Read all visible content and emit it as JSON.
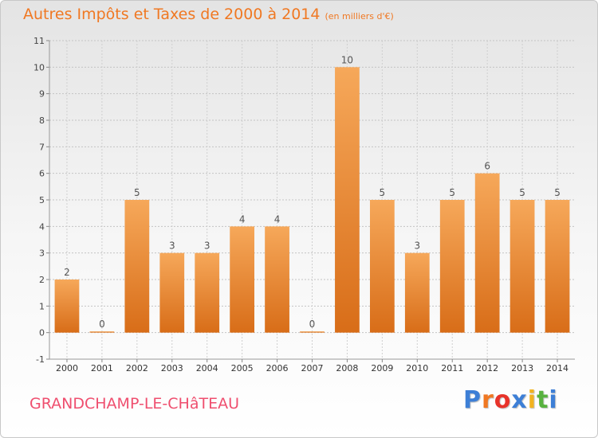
{
  "header": {
    "title": "Autres Impôts et Taxes de 2000 à 2014",
    "unit": "(en milliers d'€)"
  },
  "footer": {
    "commune": "GRANDCHAMP-LE-CHâTEAU",
    "logo_letters": [
      "P",
      "r",
      "o",
      "x",
      "i",
      "t",
      "i"
    ]
  },
  "colors": {
    "title": "#f07822",
    "commune": "#ef4f6f",
    "bar_light": "#f6a85a",
    "bar_dark": "#d86d18"
  },
  "chart_data": {
    "type": "bar",
    "title": "Autres Impôts et Taxes de 2000 à 2014",
    "xlabel": "",
    "ylabel": "",
    "categories": [
      "2000",
      "2001",
      "2002",
      "2003",
      "2004",
      "2005",
      "2006",
      "2007",
      "2008",
      "2009",
      "2010",
      "2011",
      "2012",
      "2013",
      "2014"
    ],
    "values": [
      2,
      0,
      5,
      3,
      3,
      4,
      4,
      0,
      10,
      5,
      3,
      5,
      6,
      5,
      5
    ],
    "ylim": [
      -1,
      11
    ],
    "yticks": [
      -1,
      0,
      1,
      2,
      3,
      4,
      5,
      6,
      7,
      8,
      9,
      10,
      11
    ],
    "grid": true,
    "legend": "none"
  }
}
